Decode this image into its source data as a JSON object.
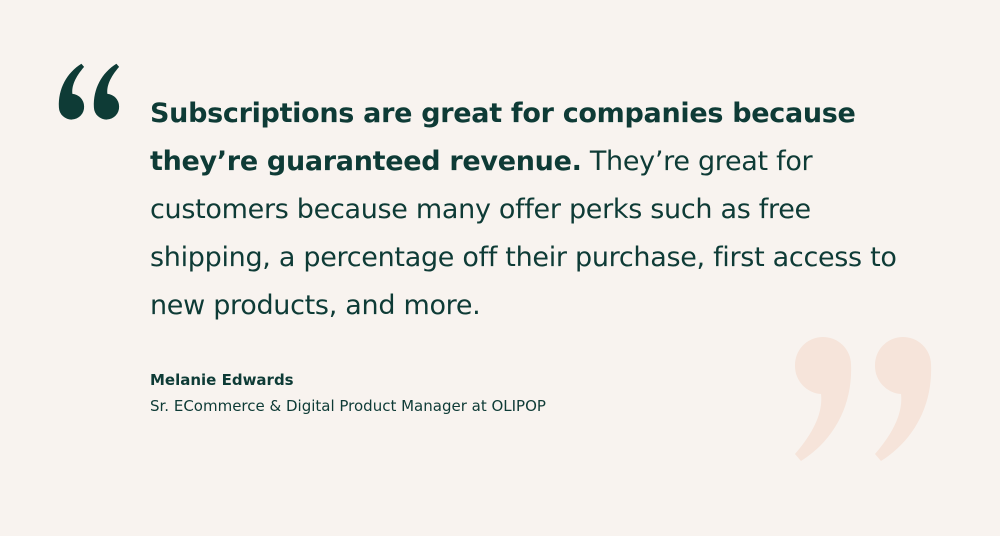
{
  "quote": {
    "bold_text": "Subscriptions are great for companies because they’re guaranteed revenue.",
    "regular_text": "They’re great for customers because many offer perks such as free shipping, a percentage off their purchase, first access to new products, and more."
  },
  "author": {
    "name": "Melanie Edwards",
    "title": "Sr. ECommerce & Digital Product Manager at OLIPOP"
  }
}
